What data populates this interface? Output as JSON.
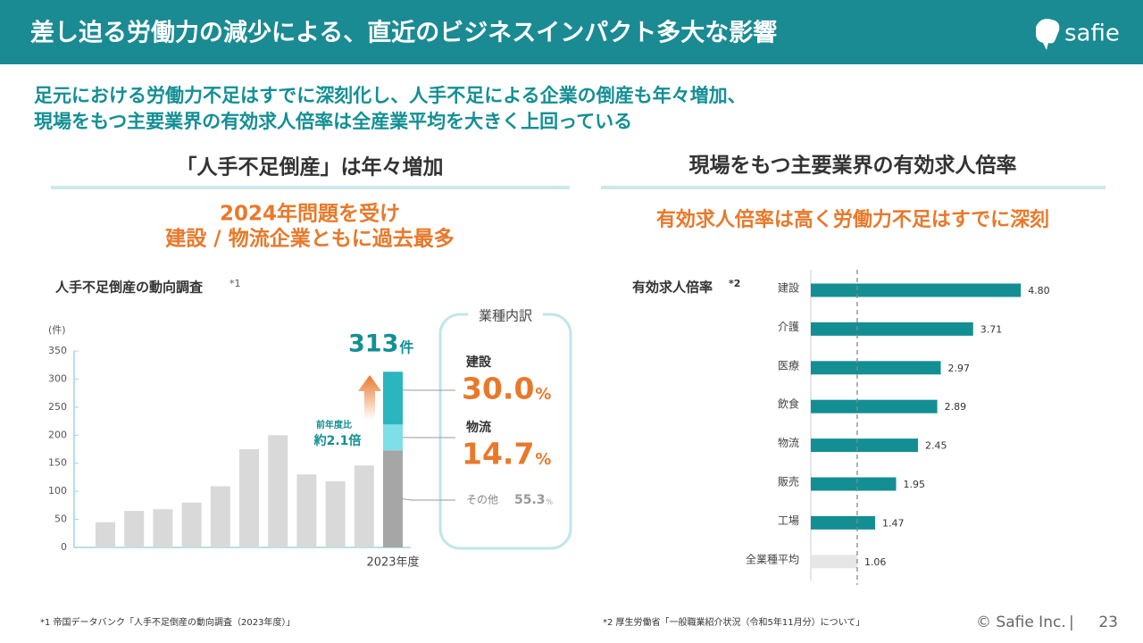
{
  "header": {
    "title": "差し迫る労働力の減少による、直近のビジネスインパクト多大な影響",
    "logo": "safie"
  },
  "lead": [
    "足元における労働力不足はすでに深刻化し、人手不足による企業の倒産も年々増加、",
    "現場をもつ主要業界の有効求人倍率は全産業平均を大きく上回っている"
  ],
  "sections": [
    {
      "heading": "「人手不足倒産」は年々増加",
      "highlight": [
        "2024年問題を受け",
        "建設 / 物流企業ともに過去最多"
      ]
    },
    {
      "heading": "現場をもつ主要業界の有効求人倍率",
      "highlight": [
        "有効求人倍率は高く労働力不足はすでに深刻"
      ]
    }
  ],
  "chart_data": [
    {
      "type": "bar",
      "title": "人手不足倒産の動向調査",
      "title_note": "*1",
      "y_unit": "(件)",
      "categories": [
        null,
        null,
        null,
        null,
        null,
        null,
        null,
        null,
        null,
        null,
        "2023年度"
      ],
      "values": [
        45,
        65,
        68,
        80,
        109,
        175,
        200,
        130,
        118,
        146,
        313
      ],
      "value_unit": "件",
      "color": "#d9d9d9",
      "ylim": [
        0,
        350
      ],
      "yticks": [
        0,
        50,
        100,
        150,
        200,
        250,
        300,
        350
      ],
      "annotation": [
        "前年度比",
        "約2.1倍"
      ],
      "breakdown": {
        "title": "業種内訳",
        "percent_unit": "%",
        "segments": [
          {
            "name": "その他",
            "value": 173,
            "percent": 55.3,
            "color": "#a6a6a6"
          },
          {
            "name": "物流",
            "value": 46,
            "percent": 14.7,
            "color": "#7fdfe8"
          },
          {
            "name": "建設",
            "value": 94,
            "percent": 30,
            "percent_label": "30.0",
            "color": "#2bb5bf"
          }
        ]
      }
    },
    {
      "type": "hbar",
      "title": "有効求人倍率",
      "title_note": "*2",
      "categories": [
        "建設",
        "介護",
        "医療",
        "飲食",
        "物流",
        "販売",
        "工場",
        "全業種平均"
      ],
      "values": [
        4.8,
        3.71,
        2.97,
        2.89,
        2.45,
        1.95,
        1.47,
        1.06
      ],
      "value_labels": [
        "4.80",
        "3.71",
        "2.97",
        "2.89",
        "2.45",
        "1.95",
        "1.47",
        "1.06"
      ],
      "colors": [
        "#138f94",
        "#138f94",
        "#138f94",
        "#138f94",
        "#138f94",
        "#138f94",
        "#138f94",
        "#e6e6e6"
      ],
      "xlim": [
        0,
        5
      ]
    }
  ],
  "footnotes": [
    "*1 帝国データバンク「人手不足倒産の動向調査（2023年度）」",
    "*2 厚生労働省「一般職業紹介状況（令和5年11月分）について」"
  ],
  "footer": {
    "copyright": "© Safie Inc.",
    "separator": "|",
    "page": "23"
  }
}
